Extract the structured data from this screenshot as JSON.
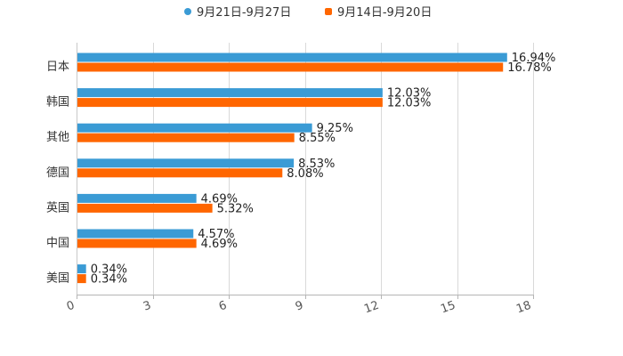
{
  "chart_data": {
    "type": "bar",
    "orientation": "horizontal",
    "categories": [
      "日本",
      "韩国",
      "其他",
      "德国",
      "英国",
      "中国",
      "美国"
    ],
    "series": [
      {
        "name": "9月21日-9月27日",
        "color": "#3a9bd5",
        "values": [
          16.94,
          12.03,
          9.25,
          8.53,
          4.69,
          4.57,
          0.34
        ],
        "labels": [
          "16.94%",
          "12.03%",
          "9.25%",
          "8.53%",
          "4.69%",
          "4.57%",
          "0.34%"
        ]
      },
      {
        "name": "9月14日-9月20日",
        "color": "#ff6600",
        "values": [
          16.78,
          12.03,
          8.55,
          8.08,
          5.32,
          4.69,
          0.34
        ],
        "labels": [
          "16.78%",
          "12.03%",
          "8.55%",
          "8.08%",
          "5.32%",
          "4.69%",
          "0.34%"
        ]
      }
    ],
    "xlim": [
      0,
      18
    ],
    "xticks": [
      "0",
      "3",
      "6",
      "9",
      "12",
      "15",
      "18"
    ],
    "legend_position": "top-center",
    "grid": true
  }
}
